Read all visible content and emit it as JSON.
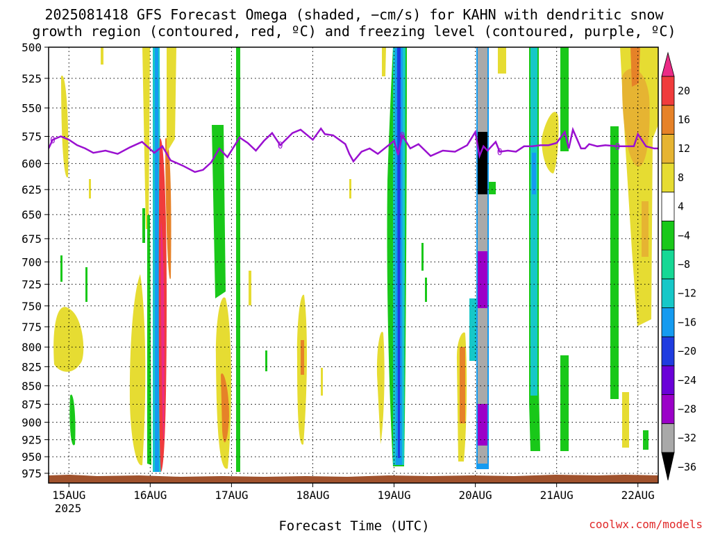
{
  "title": {
    "line1": "2025081418 GFS Forecast Omega (shaded, −cm/s) for KAHN with dendritic snow",
    "line2": "growth region (contoured, red, ºC) and freezing level (contoured, purple, ºC)"
  },
  "xlabel": "Forecast Time (UTC)",
  "credit": "coolwx.com/models",
  "colors": {
    "freezing_level": "#9a10d0",
    "ground": "#a0522d",
    "colorbar": [
      "#000000",
      "#a9a9a9",
      "#9b00c8",
      "#6a00d8",
      "#1f3ce0",
      "#159bf0",
      "#16c8c8",
      "#16d895",
      "#19c819",
      "#ffffff",
      "#e6dc32",
      "#e6b432",
      "#e68228",
      "#f03c3c",
      "#eb2b86"
    ]
  },
  "chart_data": {
    "type": "heatmap",
    "y_axis": {
      "label": "",
      "ticks": [
        500,
        525,
        550,
        575,
        600,
        625,
        650,
        675,
        700,
        725,
        750,
        775,
        800,
        825,
        850,
        875,
        900,
        925,
        950,
        975
      ],
      "range": [
        500,
        990
      ]
    },
    "x_axis": {
      "ticks": [
        "15AUG",
        "16AUG",
        "17AUG",
        "18AUG",
        "19AUG",
        "20AUG",
        "21AUG",
        "22AUG"
      ],
      "sublabel": "2025",
      "range_days": [
        14.75,
        22.25
      ]
    },
    "colorbar": {
      "labels": [
        "20",
        "16",
        "12",
        "8",
        "4",
        "−4",
        "−8",
        "−12",
        "−16",
        "−20",
        "−24",
        "−28",
        "−32",
        "−36"
      ]
    },
    "freezing_level_label": "0",
    "freezing_level": {
      "x": [
        14.75,
        14.8,
        14.9,
        15.0,
        15.1,
        15.2,
        15.3,
        15.45,
        15.6,
        15.75,
        15.9,
        16.05,
        16.15,
        16.25,
        16.4,
        16.55,
        16.65,
        16.75,
        16.85,
        16.95,
        17.1,
        17.2,
        17.3,
        17.4,
        17.5,
        17.6,
        17.75,
        17.85,
        18.0,
        18.1,
        18.15,
        18.25,
        18.4,
        18.45,
        18.5,
        18.6,
        18.7,
        18.8,
        18.9,
        19.0,
        19.05,
        19.1,
        19.2,
        19.3,
        19.45,
        19.6,
        19.75,
        19.9,
        20.0,
        20.05,
        20.1,
        20.15,
        20.25,
        20.3,
        20.4,
        20.5,
        20.6,
        20.7,
        20.8,
        20.9,
        21.0,
        21.1,
        21.15,
        21.2,
        21.3,
        21.35,
        21.4,
        21.5,
        21.6,
        21.75,
        21.85,
        21.9,
        21.95,
        22.0,
        22.1,
        22.2,
        22.25
      ],
      "y": [
        586,
        578,
        575,
        578,
        583,
        586,
        590,
        588,
        591,
        585,
        580,
        590,
        584,
        597,
        602,
        608,
        606,
        599,
        586,
        594,
        576,
        581,
        588,
        579,
        572,
        583,
        572,
        569,
        578,
        568,
        573,
        574,
        582,
        591,
        598,
        589,
        586,
        591,
        585,
        579,
        592,
        574,
        586,
        582,
        593,
        588,
        589,
        583,
        571,
        593,
        584,
        588,
        580,
        589,
        588,
        589,
        584,
        584,
        583,
        583,
        581,
        571,
        586,
        569,
        586,
        586,
        582,
        584,
        583,
        584,
        584,
        584,
        584,
        573,
        584,
        586,
        586
      ]
    }
  }
}
